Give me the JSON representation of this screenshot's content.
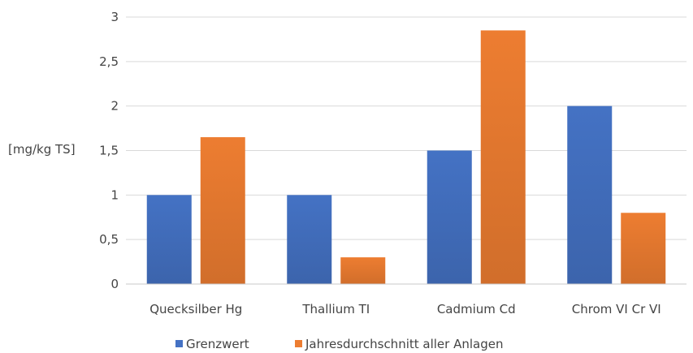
{
  "chart_data": {
    "type": "bar",
    "categories": [
      "Quecksilber Hg",
      "Thallium TI",
      "Cadmium Cd",
      "Chrom VI Cr VI"
    ],
    "series": [
      {
        "name": "Grenzwert",
        "values": [
          1,
          1,
          1.5,
          2
        ],
        "color": "#4472C4"
      },
      {
        "name": "Jahresdurchschnitt aller Anlagen",
        "values": [
          1.65,
          0.3,
          2.85,
          0.8
        ],
        "color": "#ED7D31"
      }
    ],
    "ylabel": "[mg/kg TS]",
    "ylim": [
      0,
      3
    ],
    "yticks": [
      {
        "value": 0,
        "label": "0"
      },
      {
        "value": 0.5,
        "label": "0,5"
      },
      {
        "value": 1,
        "label": "1"
      },
      {
        "value": 1.5,
        "label": "1,5"
      },
      {
        "value": 2,
        "label": "2"
      },
      {
        "value": 2.5,
        "label": "2,5"
      },
      {
        "value": 3,
        "label": "3"
      }
    ],
    "grid": true,
    "legend": "bottom"
  }
}
